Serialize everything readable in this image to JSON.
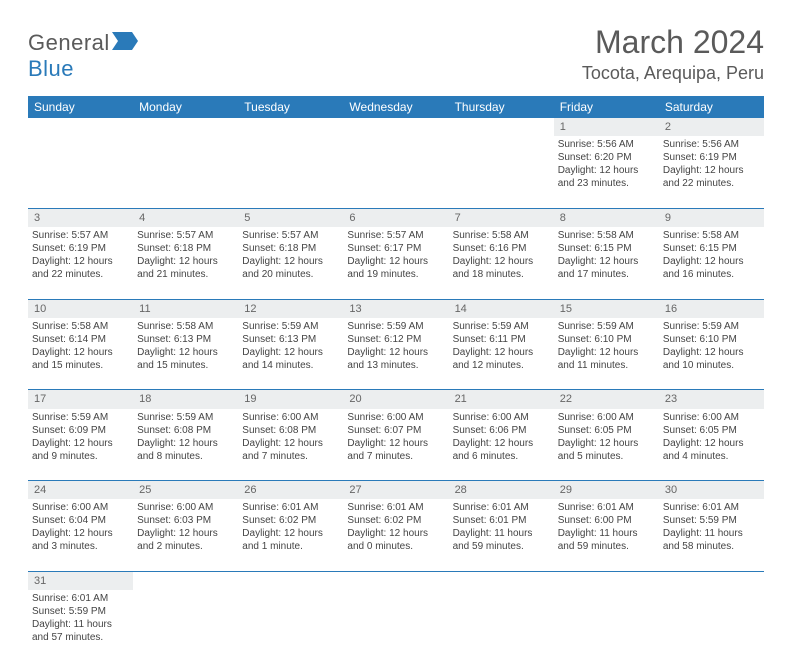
{
  "logo": {
    "textA": "General",
    "textB": "Blue"
  },
  "header": {
    "month_title": "March 2024",
    "location": "Tocota, Arequipa, Peru"
  },
  "colors": {
    "header_bg": "#2a7ab9",
    "daynum_bg": "#eceeef",
    "border": "#2a7ab9",
    "text": "#444444",
    "title": "#5a5a5a"
  },
  "day_labels": [
    "Sunday",
    "Monday",
    "Tuesday",
    "Wednesday",
    "Thursday",
    "Friday",
    "Saturday"
  ],
  "weeks": [
    [
      null,
      null,
      null,
      null,
      null,
      {
        "n": "1",
        "sr": "Sunrise: 5:56 AM",
        "ss": "Sunset: 6:20 PM",
        "d1": "Daylight: 12 hours",
        "d2": "and 23 minutes."
      },
      {
        "n": "2",
        "sr": "Sunrise: 5:56 AM",
        "ss": "Sunset: 6:19 PM",
        "d1": "Daylight: 12 hours",
        "d2": "and 22 minutes."
      }
    ],
    [
      {
        "n": "3",
        "sr": "Sunrise: 5:57 AM",
        "ss": "Sunset: 6:19 PM",
        "d1": "Daylight: 12 hours",
        "d2": "and 22 minutes."
      },
      {
        "n": "4",
        "sr": "Sunrise: 5:57 AM",
        "ss": "Sunset: 6:18 PM",
        "d1": "Daylight: 12 hours",
        "d2": "and 21 minutes."
      },
      {
        "n": "5",
        "sr": "Sunrise: 5:57 AM",
        "ss": "Sunset: 6:18 PM",
        "d1": "Daylight: 12 hours",
        "d2": "and 20 minutes."
      },
      {
        "n": "6",
        "sr": "Sunrise: 5:57 AM",
        "ss": "Sunset: 6:17 PM",
        "d1": "Daylight: 12 hours",
        "d2": "and 19 minutes."
      },
      {
        "n": "7",
        "sr": "Sunrise: 5:58 AM",
        "ss": "Sunset: 6:16 PM",
        "d1": "Daylight: 12 hours",
        "d2": "and 18 minutes."
      },
      {
        "n": "8",
        "sr": "Sunrise: 5:58 AM",
        "ss": "Sunset: 6:15 PM",
        "d1": "Daylight: 12 hours",
        "d2": "and 17 minutes."
      },
      {
        "n": "9",
        "sr": "Sunrise: 5:58 AM",
        "ss": "Sunset: 6:15 PM",
        "d1": "Daylight: 12 hours",
        "d2": "and 16 minutes."
      }
    ],
    [
      {
        "n": "10",
        "sr": "Sunrise: 5:58 AM",
        "ss": "Sunset: 6:14 PM",
        "d1": "Daylight: 12 hours",
        "d2": "and 15 minutes."
      },
      {
        "n": "11",
        "sr": "Sunrise: 5:58 AM",
        "ss": "Sunset: 6:13 PM",
        "d1": "Daylight: 12 hours",
        "d2": "and 15 minutes."
      },
      {
        "n": "12",
        "sr": "Sunrise: 5:59 AM",
        "ss": "Sunset: 6:13 PM",
        "d1": "Daylight: 12 hours",
        "d2": "and 14 minutes."
      },
      {
        "n": "13",
        "sr": "Sunrise: 5:59 AM",
        "ss": "Sunset: 6:12 PM",
        "d1": "Daylight: 12 hours",
        "d2": "and 13 minutes."
      },
      {
        "n": "14",
        "sr": "Sunrise: 5:59 AM",
        "ss": "Sunset: 6:11 PM",
        "d1": "Daylight: 12 hours",
        "d2": "and 12 minutes."
      },
      {
        "n": "15",
        "sr": "Sunrise: 5:59 AM",
        "ss": "Sunset: 6:10 PM",
        "d1": "Daylight: 12 hours",
        "d2": "and 11 minutes."
      },
      {
        "n": "16",
        "sr": "Sunrise: 5:59 AM",
        "ss": "Sunset: 6:10 PM",
        "d1": "Daylight: 12 hours",
        "d2": "and 10 minutes."
      }
    ],
    [
      {
        "n": "17",
        "sr": "Sunrise: 5:59 AM",
        "ss": "Sunset: 6:09 PM",
        "d1": "Daylight: 12 hours",
        "d2": "and 9 minutes."
      },
      {
        "n": "18",
        "sr": "Sunrise: 5:59 AM",
        "ss": "Sunset: 6:08 PM",
        "d1": "Daylight: 12 hours",
        "d2": "and 8 minutes."
      },
      {
        "n": "19",
        "sr": "Sunrise: 6:00 AM",
        "ss": "Sunset: 6:08 PM",
        "d1": "Daylight: 12 hours",
        "d2": "and 7 minutes."
      },
      {
        "n": "20",
        "sr": "Sunrise: 6:00 AM",
        "ss": "Sunset: 6:07 PM",
        "d1": "Daylight: 12 hours",
        "d2": "and 7 minutes."
      },
      {
        "n": "21",
        "sr": "Sunrise: 6:00 AM",
        "ss": "Sunset: 6:06 PM",
        "d1": "Daylight: 12 hours",
        "d2": "and 6 minutes."
      },
      {
        "n": "22",
        "sr": "Sunrise: 6:00 AM",
        "ss": "Sunset: 6:05 PM",
        "d1": "Daylight: 12 hours",
        "d2": "and 5 minutes."
      },
      {
        "n": "23",
        "sr": "Sunrise: 6:00 AM",
        "ss": "Sunset: 6:05 PM",
        "d1": "Daylight: 12 hours",
        "d2": "and 4 minutes."
      }
    ],
    [
      {
        "n": "24",
        "sr": "Sunrise: 6:00 AM",
        "ss": "Sunset: 6:04 PM",
        "d1": "Daylight: 12 hours",
        "d2": "and 3 minutes."
      },
      {
        "n": "25",
        "sr": "Sunrise: 6:00 AM",
        "ss": "Sunset: 6:03 PM",
        "d1": "Daylight: 12 hours",
        "d2": "and 2 minutes."
      },
      {
        "n": "26",
        "sr": "Sunrise: 6:01 AM",
        "ss": "Sunset: 6:02 PM",
        "d1": "Daylight: 12 hours",
        "d2": "and 1 minute."
      },
      {
        "n": "27",
        "sr": "Sunrise: 6:01 AM",
        "ss": "Sunset: 6:02 PM",
        "d1": "Daylight: 12 hours",
        "d2": "and 0 minutes."
      },
      {
        "n": "28",
        "sr": "Sunrise: 6:01 AM",
        "ss": "Sunset: 6:01 PM",
        "d1": "Daylight: 11 hours",
        "d2": "and 59 minutes."
      },
      {
        "n": "29",
        "sr": "Sunrise: 6:01 AM",
        "ss": "Sunset: 6:00 PM",
        "d1": "Daylight: 11 hours",
        "d2": "and 59 minutes."
      },
      {
        "n": "30",
        "sr": "Sunrise: 6:01 AM",
        "ss": "Sunset: 5:59 PM",
        "d1": "Daylight: 11 hours",
        "d2": "and 58 minutes."
      }
    ],
    [
      {
        "n": "31",
        "sr": "Sunrise: 6:01 AM",
        "ss": "Sunset: 5:59 PM",
        "d1": "Daylight: 11 hours",
        "d2": "and 57 minutes."
      },
      null,
      null,
      null,
      null,
      null,
      null
    ]
  ]
}
